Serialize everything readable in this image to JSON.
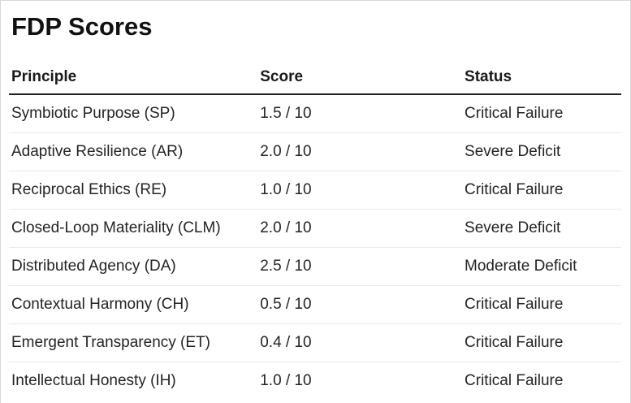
{
  "page": {
    "title": "FDP Scores"
  },
  "table": {
    "columns": [
      "Principle",
      "Score",
      "Status"
    ],
    "rows": [
      {
        "principle": "Symbiotic Purpose (SP)",
        "score": "1.5 / 10",
        "status": "Critical Failure"
      },
      {
        "principle": "Adaptive Resilience (AR)",
        "score": "2.0 / 10",
        "status": "Severe Deficit"
      },
      {
        "principle": "Reciprocal Ethics (RE)",
        "score": "1.0 / 10",
        "status": "Critical Failure"
      },
      {
        "principle": "Closed-Loop Materiality (CLM)",
        "score": "2.0 / 10",
        "status": "Severe Deficit"
      },
      {
        "principle": "Distributed Agency (DA)",
        "score": "2.5 / 10",
        "status": "Moderate Deficit"
      },
      {
        "principle": "Contextual Harmony (CH)",
        "score": "0.5 / 10",
        "status": "Critical Failure"
      },
      {
        "principle": "Emergent Transparency (ET)",
        "score": "0.4 / 10",
        "status": "Critical Failure"
      },
      {
        "principle": "Intellectual Honesty (IH)",
        "score": "1.0 / 10",
        "status": "Critical Failure"
      }
    ]
  },
  "colors": {
    "text_primary": "#111111",
    "text_body": "#242424",
    "header_rule": "#212121",
    "row_rule": "#e9e9e9",
    "card_border": "#d6d6d6",
    "background": "#ffffff"
  }
}
